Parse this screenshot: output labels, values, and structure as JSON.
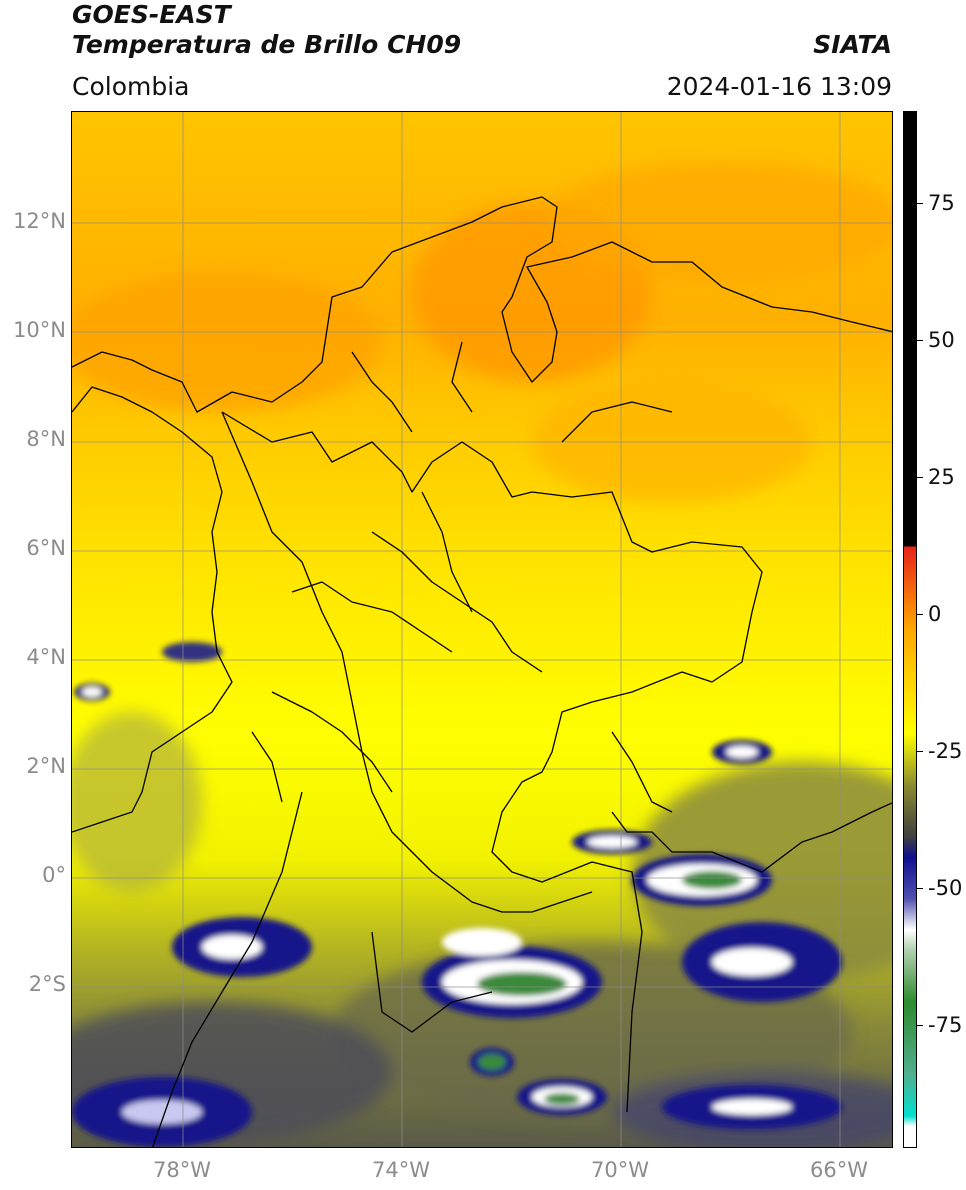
{
  "header": {
    "title_line1": "GOES-EAST",
    "title_line2": "Temperatura de Brillo CH09",
    "agency": "SIATA",
    "region": "Colombia",
    "timestamp": "2024-01-16 13:09"
  },
  "map": {
    "lat_labels": [
      "12°N",
      "10°N",
      "8°N",
      "6°N",
      "4°N",
      "2°N",
      "0°",
      "2°S"
    ],
    "lon_labels": [
      "78°W",
      "74°W",
      "70°W",
      "66°W"
    ],
    "lat_range": [
      -5,
      14
    ],
    "lon_range": [
      -80,
      -65
    ],
    "coastline_color": "#000000",
    "grid_color": "#8c8c8c"
  },
  "colorbar": {
    "labels": [
      "75",
      "50",
      "25",
      "0",
      "-25",
      "-50",
      "-75"
    ],
    "values": [
      75,
      50,
      25,
      0,
      -25,
      -50,
      -75
    ],
    "range": [
      -100,
      90
    ],
    "colors": {
      "warm_black": "#000000",
      "red": "#e8221a",
      "orange": "#ffa800",
      "yellow": "#ffff00",
      "olive": "#8c8c30",
      "dark_blue": "#101090",
      "white": "#ffffff",
      "green": "#2e8b2e",
      "teal": "#00e0d0"
    }
  }
}
